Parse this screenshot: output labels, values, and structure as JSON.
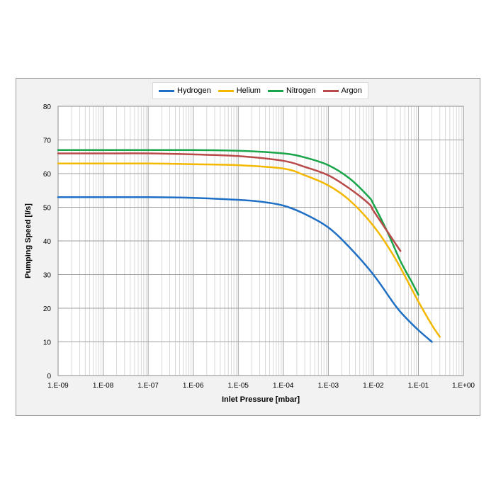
{
  "chart_data": {
    "type": "line",
    "xscale": "log",
    "xlim": [
      1e-09,
      1
    ],
    "ylim": [
      0,
      80
    ],
    "grid": true,
    "legend_position": "top",
    "xlabel": "Inlet Pressure [mbar]",
    "ylabel": "Pumping Speed [l/s]",
    "x_ticks": [
      {
        "value": 1e-09,
        "label": "1.E-09"
      },
      {
        "value": 1e-08,
        "label": "1.E-08"
      },
      {
        "value": 1e-07,
        "label": "1.E-07"
      },
      {
        "value": 1e-06,
        "label": "1.E-06"
      },
      {
        "value": 1e-05,
        "label": "1.E-05"
      },
      {
        "value": 0.0001,
        "label": "1.E-04"
      },
      {
        "value": 0.001,
        "label": "1.E-03"
      },
      {
        "value": 0.01,
        "label": "1.E-02"
      },
      {
        "value": 0.1,
        "label": "1.E-01"
      },
      {
        "value": 1,
        "label": "1.E+00"
      }
    ],
    "y_ticks": [
      {
        "value": 0,
        "label": "0"
      },
      {
        "value": 10,
        "label": "10"
      },
      {
        "value": 20,
        "label": "20"
      },
      {
        "value": 30,
        "label": "30"
      },
      {
        "value": 40,
        "label": "40"
      },
      {
        "value": 50,
        "label": "50"
      },
      {
        "value": 60,
        "label": "60"
      },
      {
        "value": 70,
        "label": "70"
      },
      {
        "value": 80,
        "label": "80"
      }
    ],
    "series": [
      {
        "name": "Hydrogen",
        "color": "#1f6fc5",
        "points": [
          [
            1e-09,
            53
          ],
          [
            1e-08,
            53
          ],
          [
            1e-07,
            53
          ],
          [
            1e-06,
            52.8
          ],
          [
            1e-05,
            52.2
          ],
          [
            3e-05,
            51.7
          ],
          [
            0.0001,
            50.5
          ],
          [
            0.0003,
            48
          ],
          [
            0.001,
            44
          ],
          [
            0.003,
            38
          ],
          [
            0.01,
            30
          ],
          [
            0.03,
            21
          ],
          [
            0.05,
            17.5
          ],
          [
            0.1,
            13.5
          ],
          [
            0.2,
            10
          ]
        ]
      },
      {
        "name": "Helium",
        "color": "#f4b800",
        "points": [
          [
            1e-09,
            63
          ],
          [
            1e-08,
            63
          ],
          [
            1e-07,
            63
          ],
          [
            1e-06,
            62.8
          ],
          [
            1e-05,
            62.5
          ],
          [
            0.0001,
            61.5
          ],
          [
            0.0003,
            59.5
          ],
          [
            0.001,
            56.5
          ],
          [
            0.003,
            52
          ],
          [
            0.01,
            44.5
          ],
          [
            0.03,
            35
          ],
          [
            0.1,
            22
          ],
          [
            0.2,
            15
          ],
          [
            0.3,
            11.5
          ]
        ]
      },
      {
        "name": "Nitrogen",
        "color": "#1aa54a",
        "points": [
          [
            1e-09,
            67
          ],
          [
            1e-08,
            67
          ],
          [
            1e-07,
            67
          ],
          [
            1e-06,
            67
          ],
          [
            1e-05,
            66.8
          ],
          [
            0.0001,
            66
          ],
          [
            0.0003,
            64.8
          ],
          [
            0.001,
            62.5
          ],
          [
            0.003,
            58.5
          ],
          [
            0.008,
            53
          ],
          [
            0.01,
            51
          ],
          [
            0.02,
            43
          ],
          [
            0.04,
            34
          ],
          [
            0.07,
            28
          ],
          [
            0.1,
            24
          ]
        ]
      },
      {
        "name": "Argon",
        "color": "#b84a4a",
        "points": [
          [
            1e-09,
            66
          ],
          [
            1e-08,
            66
          ],
          [
            1e-07,
            66
          ],
          [
            1e-06,
            65.7
          ],
          [
            1e-05,
            65.2
          ],
          [
            0.0001,
            63.8
          ],
          [
            0.0003,
            62
          ],
          [
            0.001,
            59.5
          ],
          [
            0.003,
            55.5
          ],
          [
            0.008,
            51
          ],
          [
            0.01,
            49
          ],
          [
            0.02,
            43
          ],
          [
            0.04,
            37
          ]
        ]
      }
    ]
  }
}
